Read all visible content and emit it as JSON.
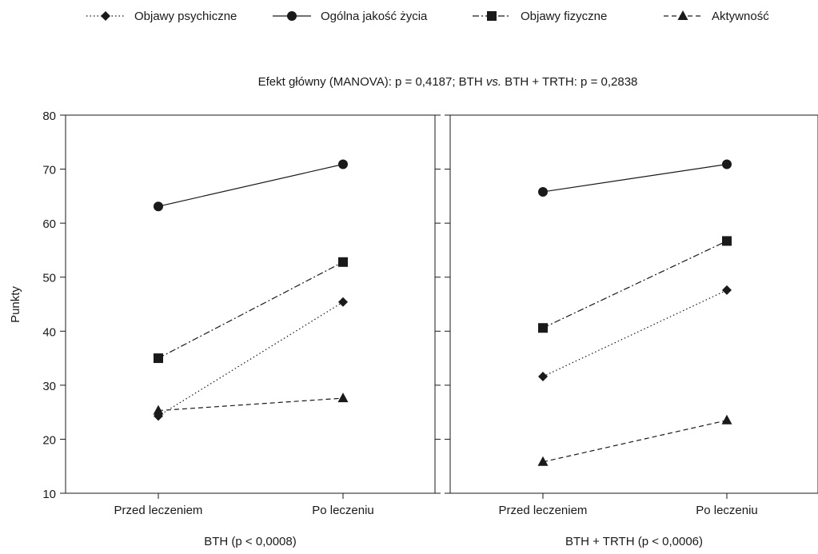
{
  "chart_data": {
    "type": "line",
    "title": "Efekt główny (MANOVA): p = 0,4187; BTH vs. BTH + TRTH: p = 0,2838",
    "title_parts": {
      "before": "Efekt główny (MANOVA): p = 0,4187; BTH ",
      "italic": "vs.",
      "after": " BTH + TRTH: p = 0,2838"
    },
    "ylabel": "Punkty",
    "ylim": [
      10,
      80
    ],
    "yticks": [
      10,
      20,
      30,
      40,
      50,
      60,
      70,
      80
    ],
    "categories": [
      "Przed leczeniem",
      "Po leczeniu"
    ],
    "legend_position": "top",
    "legend": [
      {
        "name": "Objawy psychiczne",
        "marker": "diamond",
        "dash": "dotted"
      },
      {
        "name": "Ogólna jakość życia",
        "marker": "circle",
        "dash": "solid"
      },
      {
        "name": "Objawy fizyczne",
        "marker": "square",
        "dash": "dashdot"
      },
      {
        "name": "Aktywność",
        "marker": "triangle",
        "dash": "dashed"
      }
    ],
    "panels": [
      {
        "xlabel": "BTH (p < 0,0008)",
        "series": [
          {
            "name": "Objawy psychiczne",
            "values": [
              24.3,
              45.4
            ]
          },
          {
            "name": "Ogólna jakość życia",
            "values": [
              63.1,
              70.9
            ]
          },
          {
            "name": "Objawy fizyczne",
            "values": [
              35.0,
              52.8
            ]
          },
          {
            "name": "Aktywność",
            "values": [
              25.3,
              27.6
            ]
          }
        ]
      },
      {
        "xlabel": "BTH + TRTH (p < 0,0006)",
        "series": [
          {
            "name": "Objawy psychiczne",
            "values": [
              31.6,
              47.6
            ]
          },
          {
            "name": "Ogólna jakość życia",
            "values": [
              65.8,
              70.9
            ]
          },
          {
            "name": "Objawy fizyczne",
            "values": [
              40.6,
              56.7
            ]
          },
          {
            "name": "Aktywność",
            "values": [
              15.8,
              23.5
            ]
          }
        ]
      }
    ],
    "colors": {
      "line": "#1a1a1a",
      "background": "#ffffff"
    }
  }
}
